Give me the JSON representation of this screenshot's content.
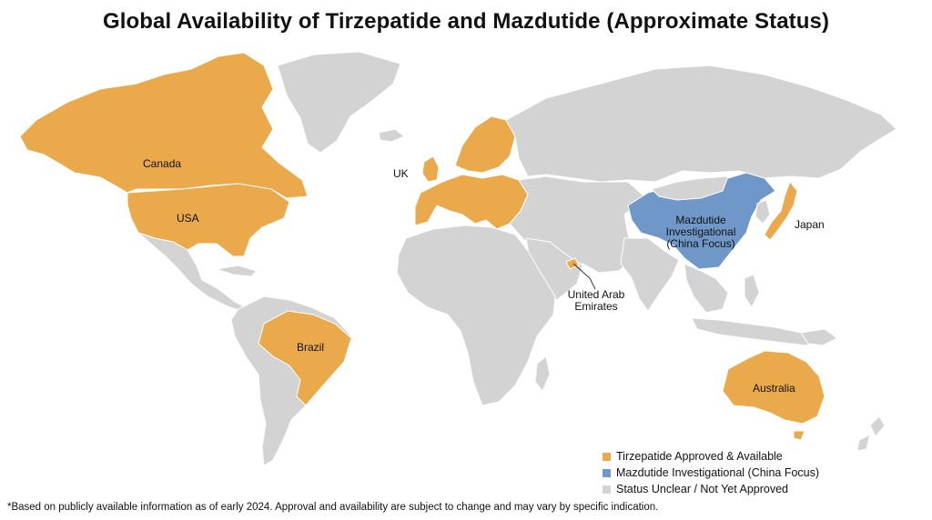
{
  "title": "Global Availability of Tirzepatide and Mazdutide (Approximate Status)",
  "colors": {
    "tirzepatide": "#eaa94a",
    "mazdutide": "#6f98c8",
    "unclear": "#d3d3d3"
  },
  "labels": {
    "canada": "Canada",
    "usa": "USA",
    "uk": "UK",
    "brazil": "Brazil",
    "japan": "Japan",
    "australia": "Australia",
    "uae_line1": "United Arab",
    "uae_line2": "Emirates",
    "china_line1": "Mazdutide",
    "china_line2": "Investigational",
    "china_line3": "(China Focus)"
  },
  "legend": [
    {
      "label": "Tirzepatide Approved & Available",
      "color": "#eaa94a"
    },
    {
      "label": "Mazdutide Investigational (China Focus)",
      "color": "#6f98c8"
    },
    {
      "label": "Status Unclear / Not Yet Approved",
      "color": "#d3d3d3"
    }
  ],
  "footnote": "*Based on publicly available information as of early 2024. Approval and availability are subject to change and may vary by specific indication."
}
